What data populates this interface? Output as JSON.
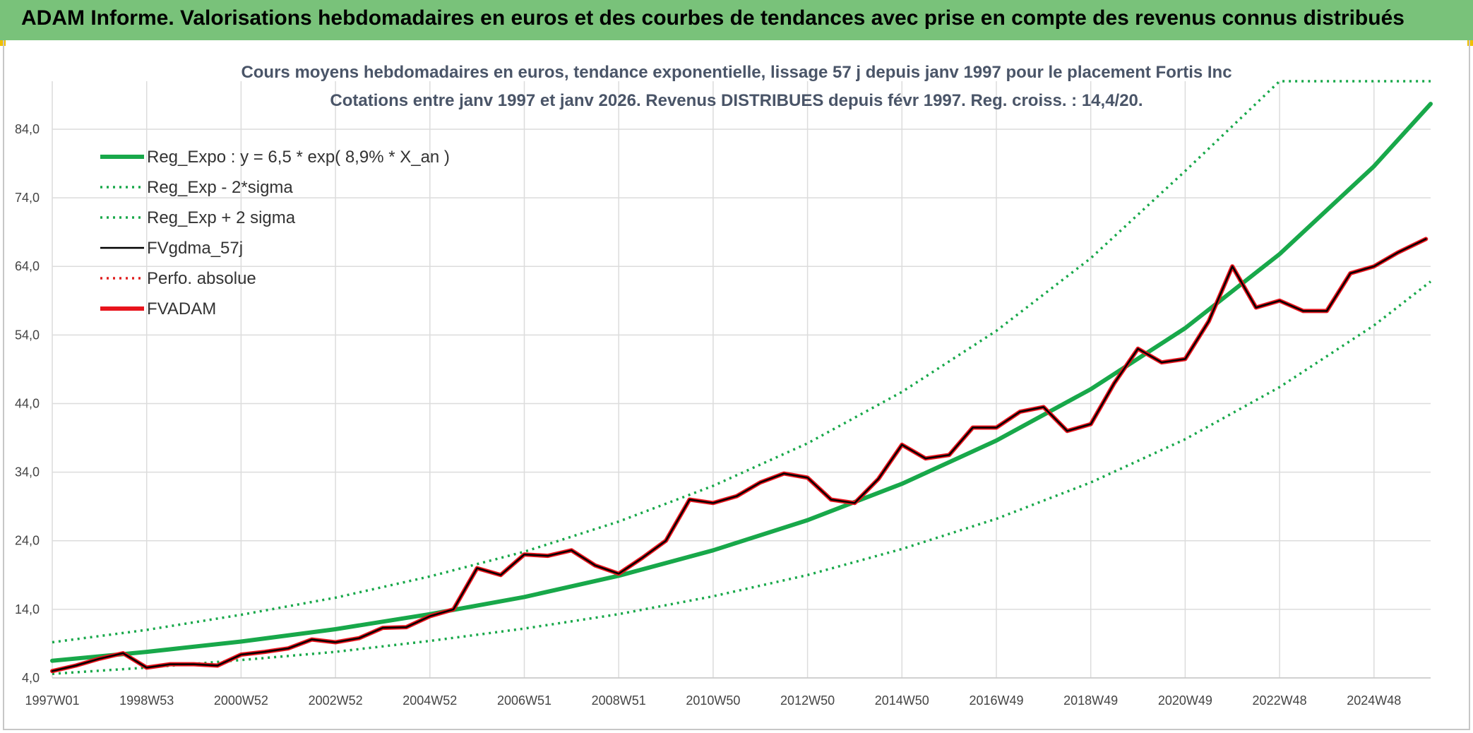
{
  "banner": {
    "title": "ADAM Informe. Valorisations hebdomadaires en euros et des courbes de tendances avec prise en compte des revenus connus distribués"
  },
  "chart_data": {
    "type": "line",
    "title": "Cours moyens hebdomadaires en euros, tendance exponentielle, lissage 57 j depuis janv 1997 pour le placement Fortis Inc",
    "subtitle": "Cotations entre janv 1997 et janv 2026. Revenus DISTRIBUES depuis févr 1997. Reg. croiss. : 14,4/20.",
    "xlabel": "",
    "ylabel": "",
    "x_range": [
      1997.0,
      2026.2
    ],
    "ylim": [
      4.0,
      91.0
    ],
    "y_ticks": [
      4.0,
      14.0,
      24.0,
      34.0,
      44.0,
      54.0,
      64.0,
      74.0,
      84.0
    ],
    "y_tick_labels": [
      "4,0",
      "14,0",
      "24,0",
      "34,0",
      "44,0",
      "54,0",
      "64,0",
      "74,0",
      "84,0"
    ],
    "x_ticks": [
      1997.0,
      1999.0,
      2001.0,
      2003.0,
      2005.0,
      2007.0,
      2009.0,
      2011.0,
      2013.0,
      2015.0,
      2017.0,
      2019.0,
      2021.0,
      2023.0,
      2025.0
    ],
    "x_tick_labels": [
      "1997W01",
      "1998W53",
      "2000W52",
      "2002W52",
      "2004W52",
      "2006W51",
      "2008W51",
      "2010W50",
      "2012W50",
      "2014W50",
      "2016W49",
      "2018W49",
      "2020W49",
      "2022W48",
      "2024W48"
    ],
    "grid": true,
    "legend_position": "top-left",
    "series": [
      {
        "name": "Reg_Expo : y = 6,5 * exp( 8,9% *  X_an )",
        "style": "solid-thick",
        "color": "#18a84a",
        "x": [
          1997.0,
          1999.0,
          2001.0,
          2003.0,
          2005.0,
          2007.0,
          2009.0,
          2011.0,
          2013.0,
          2015.0,
          2017.0,
          2019.0,
          2021.0,
          2023.0,
          2025.0,
          2026.2
        ],
        "y": [
          6.5,
          7.8,
          9.3,
          11.1,
          13.3,
          15.8,
          18.9,
          22.6,
          27.0,
          32.3,
          38.6,
          46.1,
          55.0,
          65.8,
          78.6,
          87.7
        ]
      },
      {
        "name": "Reg_Exp - 2*sigma",
        "style": "dotted",
        "color": "#18a84a",
        "x": [
          1997.0,
          1999.0,
          2001.0,
          2003.0,
          2005.0,
          2007.0,
          2009.0,
          2011.0,
          2013.0,
          2015.0,
          2017.0,
          2019.0,
          2021.0,
          2023.0,
          2025.0,
          2026.2
        ],
        "y": [
          4.6,
          5.5,
          6.6,
          7.8,
          9.4,
          11.2,
          13.3,
          15.9,
          19.0,
          22.8,
          27.2,
          32.5,
          38.8,
          46.4,
          55.4,
          61.8
        ]
      },
      {
        "name": "Reg_Exp + 2 sigma",
        "style": "dotted",
        "color": "#18a84a",
        "x": [
          1997.0,
          1999.0,
          2001.0,
          2003.0,
          2005.0,
          2007.0,
          2009.0,
          2011.0,
          2013.0,
          2015.0,
          2017.0,
          2019.0,
          2021.0,
          2023.0,
          2024.1,
          2025.0,
          2026.2
        ],
        "y": [
          9.2,
          11.0,
          13.2,
          15.7,
          18.8,
          22.4,
          26.8,
          32.0,
          38.2,
          45.7,
          54.6,
          65.2,
          77.9,
          91.0,
          91.0,
          91.0,
          91.0
        ]
      },
      {
        "name": "FVgdma_57j",
        "style": "solid",
        "color": "#000000",
        "x": [
          1997.0,
          1997.5,
          1998.0,
          1998.5,
          1999.0,
          1999.5,
          2000.0,
          2000.5,
          2001.0,
          2001.5,
          2002.0,
          2002.5,
          2003.0,
          2003.5,
          2004.0,
          2004.5,
          2005.0,
          2005.5,
          2006.0,
          2006.5,
          2007.0,
          2007.5,
          2008.0,
          2008.5,
          2009.0,
          2009.5,
          2010.0,
          2010.5,
          2011.0,
          2011.5,
          2012.0,
          2012.5,
          2013.0,
          2013.5,
          2014.0,
          2014.5,
          2015.0,
          2015.5,
          2016.0,
          2016.5,
          2017.0,
          2017.5,
          2018.0,
          2018.5,
          2019.0,
          2019.5,
          2020.0,
          2020.5,
          2021.0,
          2021.5,
          2022.0,
          2022.5,
          2023.0,
          2023.5,
          2024.0,
          2024.5,
          2025.0,
          2025.5,
          2026.1
        ],
        "y": [
          5.0,
          5.8,
          6.8,
          7.6,
          5.5,
          6.0,
          6.0,
          5.8,
          7.4,
          7.8,
          8.3,
          9.6,
          9.2,
          9.8,
          11.3,
          11.4,
          13.0,
          14.0,
          20.0,
          19.0,
          22.0,
          21.8,
          22.6,
          20.4,
          19.2,
          21.5,
          24.0,
          30.0,
          29.5,
          30.5,
          32.5,
          33.8,
          33.2,
          30.0,
          29.5,
          33.0,
          38.0,
          36.0,
          36.5,
          40.5,
          40.5,
          42.8,
          43.5,
          40.0,
          41.0,
          47.0,
          52.0,
          50.0,
          50.5,
          56.0,
          64.0,
          58.0,
          59.0,
          57.5,
          57.5,
          63.0,
          64.0,
          66.0,
          68.0
        ]
      },
      {
        "name": "Perfo. absolue",
        "style": "dotted",
        "color": "#e02020",
        "x": [
          1997.0,
          1997.5,
          1998.0,
          1998.5,
          1999.0,
          1999.5,
          2000.0,
          2000.5,
          2001.0,
          2001.5,
          2002.0,
          2002.5,
          2003.0,
          2003.5,
          2004.0,
          2004.5,
          2005.0,
          2005.5,
          2006.0,
          2006.5,
          2007.0,
          2007.5,
          2008.0,
          2008.5,
          2009.0,
          2009.5,
          2010.0,
          2010.5,
          2011.0,
          2011.5,
          2012.0,
          2012.5,
          2013.0,
          2013.5,
          2014.0,
          2014.5,
          2015.0,
          2015.5,
          2016.0,
          2016.5,
          2017.0,
          2017.5,
          2018.0,
          2018.5,
          2019.0,
          2019.5,
          2020.0,
          2020.5,
          2021.0,
          2021.5,
          2022.0,
          2022.5,
          2023.0,
          2023.5,
          2024.0,
          2024.5,
          2025.0,
          2025.5,
          2026.1
        ],
        "y": [
          5.0,
          5.8,
          6.8,
          7.6,
          5.5,
          6.0,
          6.0,
          5.8,
          7.4,
          7.8,
          8.3,
          9.6,
          9.2,
          9.8,
          11.3,
          11.4,
          13.0,
          14.0,
          20.0,
          19.0,
          22.0,
          21.8,
          22.6,
          20.4,
          19.2,
          21.5,
          24.0,
          30.0,
          29.5,
          30.5,
          32.5,
          33.8,
          33.2,
          30.0,
          29.5,
          33.0,
          38.0,
          36.0,
          36.5,
          40.5,
          40.5,
          42.8,
          43.5,
          40.0,
          41.0,
          47.0,
          52.0,
          50.0,
          50.5,
          56.0,
          64.0,
          58.0,
          59.0,
          57.5,
          57.5,
          63.0,
          64.0,
          66.0,
          68.0
        ]
      },
      {
        "name": "FVADAM",
        "style": "solid-thick",
        "color": "#e8141c",
        "x": [
          1997.0,
          1997.5,
          1998.0,
          1998.5,
          1999.0,
          1999.5,
          2000.0,
          2000.5,
          2001.0,
          2001.5,
          2002.0,
          2002.5,
          2003.0,
          2003.5,
          2004.0,
          2004.5,
          2005.0,
          2005.5,
          2006.0,
          2006.5,
          2007.0,
          2007.5,
          2008.0,
          2008.5,
          2009.0,
          2009.5,
          2010.0,
          2010.5,
          2011.0,
          2011.5,
          2012.0,
          2012.5,
          2013.0,
          2013.5,
          2014.0,
          2014.5,
          2015.0,
          2015.5,
          2016.0,
          2016.5,
          2017.0,
          2017.5,
          2018.0,
          2018.5,
          2019.0,
          2019.5,
          2020.0,
          2020.5,
          2021.0,
          2021.5,
          2022.0,
          2022.5,
          2023.0,
          2023.5,
          2024.0,
          2024.5,
          2025.0,
          2025.5,
          2026.1
        ],
        "y": [
          5.0,
          5.8,
          6.8,
          7.6,
          5.5,
          6.0,
          6.0,
          5.8,
          7.4,
          7.8,
          8.3,
          9.6,
          9.2,
          9.8,
          11.3,
          11.4,
          13.0,
          14.0,
          20.0,
          19.0,
          22.0,
          21.8,
          22.6,
          20.4,
          19.2,
          21.5,
          24.0,
          30.0,
          29.5,
          30.5,
          32.5,
          33.8,
          33.2,
          30.0,
          29.5,
          33.0,
          38.0,
          36.0,
          36.5,
          40.5,
          40.5,
          42.8,
          43.5,
          40.0,
          41.0,
          47.0,
          52.0,
          50.0,
          50.5,
          56.0,
          64.0,
          58.0,
          59.0,
          57.5,
          57.5,
          63.0,
          64.0,
          66.0,
          68.0
        ]
      }
    ]
  }
}
